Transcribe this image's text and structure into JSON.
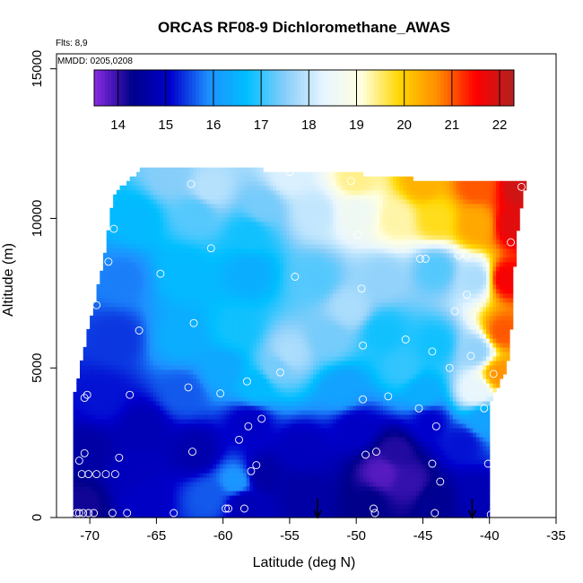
{
  "chart_data": {
    "type": "heatmap",
    "title": "ORCAS RF08-9 Dichloromethane_AWAS",
    "annotations": [
      "Flts: 8,9",
      "MMDD: 0205,0208"
    ],
    "xlabel": "Latitude (deg N)",
    "ylabel": "Altitude (m)",
    "xlim": [
      -72.5,
      -35
    ],
    "ylim": [
      0,
      15500
    ],
    "xticks": [
      -70,
      -65,
      -60,
      -55,
      -50,
      -45,
      -40,
      -35
    ],
    "xtick_labels": [
      "-70",
      "-65",
      "-60",
      "-55",
      "-50",
      "-45",
      "-40",
      "-35"
    ],
    "yticks": [
      0,
      5000,
      10000,
      15000
    ],
    "ytick_labels": [
      "0",
      "5000",
      "10000",
      "15000"
    ],
    "colorbar": {
      "min": 13.5,
      "max": 22.3,
      "ticks": [
        14,
        15,
        16,
        17,
        18,
        19,
        20,
        21,
        22
      ],
      "tick_labels": [
        "14",
        "15",
        "16",
        "17",
        "18",
        "19",
        "20",
        "21",
        "22"
      ],
      "colors": [
        "#8a2be2",
        "#00008b",
        "#0000cd",
        "#1e90ff",
        "#00bfff",
        "#87cefa",
        "#e6f5ff",
        "#ffffe0",
        "#ffd700",
        "#ff8c00",
        "#ff0000",
        "#b22222"
      ]
    },
    "region": [
      [
        -71.3,
        0
      ],
      [
        -71.3,
        3800
      ],
      [
        -70.0,
        6500
      ],
      [
        -69.0,
        8500
      ],
      [
        -68.2,
        10800
      ],
      [
        -66.0,
        11700
      ],
      [
        -62.5,
        11700
      ],
      [
        -55.0,
        11600
      ],
      [
        -50.0,
        11500
      ],
      [
        -45.0,
        11300
      ],
      [
        -41.0,
        11300
      ],
      [
        -37.3,
        11200
      ],
      [
        -37.8,
        10000
      ],
      [
        -38.2,
        8000
      ],
      [
        -38.4,
        6000
      ],
      [
        -38.7,
        5000
      ],
      [
        -39.5,
        4300
      ],
      [
        -40.0,
        3800
      ],
      [
        -40.0,
        0
      ]
    ],
    "field_points": [
      {
        "x": -70.5,
        "y": 500,
        "v": 14.2
      },
      {
        "x": -66.0,
        "y": 600,
        "v": 15.0
      },
      {
        "x": -61.0,
        "y": 700,
        "v": 15.6
      },
      {
        "x": -58.5,
        "y": 500,
        "v": 14.8
      },
      {
        "x": -54.0,
        "y": 800,
        "v": 14.6
      },
      {
        "x": -49.0,
        "y": 500,
        "v": 14.3
      },
      {
        "x": -44.0,
        "y": 600,
        "v": 14.4
      },
      {
        "x": -41.0,
        "y": 800,
        "v": 14.8
      },
      {
        "x": -70.0,
        "y": 2200,
        "v": 14.6
      },
      {
        "x": -62.0,
        "y": 2200,
        "v": 14.7
      },
      {
        "x": -54.0,
        "y": 2300,
        "v": 14.9
      },
      {
        "x": -47.0,
        "y": 2200,
        "v": 14.1
      },
      {
        "x": -42.0,
        "y": 2500,
        "v": 15.2
      },
      {
        "x": -69.0,
        "y": 4000,
        "v": 15.2
      },
      {
        "x": -63.0,
        "y": 4200,
        "v": 15.6
      },
      {
        "x": -57.5,
        "y": 4400,
        "v": 16.6
      },
      {
        "x": -51.0,
        "y": 4300,
        "v": 16.2
      },
      {
        "x": -45.0,
        "y": 4200,
        "v": 16.4
      },
      {
        "x": -41.0,
        "y": 4200,
        "v": 18.4
      },
      {
        "x": -39.2,
        "y": 4800,
        "v": 20.6
      },
      {
        "x": -68.0,
        "y": 6000,
        "v": 15.4
      },
      {
        "x": -63.0,
        "y": 6000,
        "v": 16.4
      },
      {
        "x": -59.0,
        "y": 6300,
        "v": 16.8
      },
      {
        "x": -55.0,
        "y": 5500,
        "v": 17.8
      },
      {
        "x": -52.0,
        "y": 6000,
        "v": 17.4
      },
      {
        "x": -48.0,
        "y": 6200,
        "v": 16.8
      },
      {
        "x": -44.0,
        "y": 5800,
        "v": 16.8
      },
      {
        "x": -41.0,
        "y": 5600,
        "v": 17.6
      },
      {
        "x": -39.0,
        "y": 6200,
        "v": 21.0
      },
      {
        "x": -67.5,
        "y": 8000,
        "v": 15.8
      },
      {
        "x": -63.0,
        "y": 8200,
        "v": 16.6
      },
      {
        "x": -58.0,
        "y": 8200,
        "v": 16.4
      },
      {
        "x": -53.0,
        "y": 8000,
        "v": 17.2
      },
      {
        "x": -48.0,
        "y": 8000,
        "v": 17.6
      },
      {
        "x": -44.0,
        "y": 8300,
        "v": 17.2
      },
      {
        "x": -41.0,
        "y": 8000,
        "v": 17.8
      },
      {
        "x": -38.8,
        "y": 8000,
        "v": 21.6
      },
      {
        "x": -66.5,
        "y": 10000,
        "v": 16.6
      },
      {
        "x": -62.0,
        "y": 10200,
        "v": 17.2
      },
      {
        "x": -57.0,
        "y": 10400,
        "v": 17.4
      },
      {
        "x": -53.0,
        "y": 10200,
        "v": 18.0
      },
      {
        "x": -50.0,
        "y": 10200,
        "v": 18.6
      },
      {
        "x": -47.0,
        "y": 10000,
        "v": 19.3
      },
      {
        "x": -44.0,
        "y": 10000,
        "v": 19.8
      },
      {
        "x": -41.0,
        "y": 9800,
        "v": 20.4
      },
      {
        "x": -38.2,
        "y": 9800,
        "v": 21.8
      },
      {
        "x": -64.0,
        "y": 11400,
        "v": 17.5
      },
      {
        "x": -55.0,
        "y": 11400,
        "v": 18.2
      },
      {
        "x": -50.0,
        "y": 11300,
        "v": 19.4
      },
      {
        "x": -45.0,
        "y": 11200,
        "v": 20.3
      },
      {
        "x": -41.0,
        "y": 11100,
        "v": 21.0
      },
      {
        "x": -37.6,
        "y": 11000,
        "v": 22.0
      },
      {
        "x": -61.0,
        "y": 11000,
        "v": 17.9
      },
      {
        "x": -58.0,
        "y": 9500,
        "v": 16.8
      },
      {
        "x": -50.5,
        "y": 7000,
        "v": 17.8
      },
      {
        "x": -46.5,
        "y": 5000,
        "v": 17.0
      },
      {
        "x": -56.0,
        "y": 5000,
        "v": 17.4
      },
      {
        "x": -60.0,
        "y": 5000,
        "v": 16.3
      },
      {
        "x": -66.0,
        "y": 3000,
        "v": 14.8
      },
      {
        "x": -58.0,
        "y": 3200,
        "v": 15.0
      },
      {
        "x": -50.0,
        "y": 3000,
        "v": 15.0
      },
      {
        "x": -44.5,
        "y": 3200,
        "v": 15.1
      },
      {
        "x": -40.5,
        "y": 3300,
        "v": 16.2
      },
      {
        "x": -59.0,
        "y": 1200,
        "v": 16.0
      },
      {
        "x": -57.0,
        "y": 1400,
        "v": 14.6
      },
      {
        "x": -48.0,
        "y": 1500,
        "v": 13.8
      },
      {
        "x": -46.0,
        "y": 1200,
        "v": 14.0
      },
      {
        "x": -67.0,
        "y": 1500,
        "v": 14.9
      }
    ],
    "samples": [
      [
        -71.0,
        150
      ],
      [
        -70.8,
        150
      ],
      [
        -70.5,
        150
      ],
      [
        -70.1,
        150
      ],
      [
        -69.7,
        150
      ],
      [
        -68.3,
        150
      ],
      [
        -67.2,
        150
      ],
      [
        -63.7,
        150
      ],
      [
        -59.8,
        300
      ],
      [
        -59.6,
        300
      ],
      [
        -58.4,
        300
      ],
      [
        -48.7,
        300
      ],
      [
        -48.6,
        150
      ],
      [
        -44.1,
        150
      ],
      [
        -39.9,
        100
      ],
      [
        -70.6,
        1450
      ],
      [
        -70.1,
        1450
      ],
      [
        -69.5,
        1450
      ],
      [
        -68.8,
        1450
      ],
      [
        -68.1,
        1450
      ],
      [
        -70.8,
        1900
      ],
      [
        -70.4,
        2150
      ],
      [
        -67.8,
        2000
      ],
      [
        -62.3,
        2200
      ],
      [
        -57.9,
        1550
      ],
      [
        -57.5,
        1750
      ],
      [
        -49.3,
        2100
      ],
      [
        -48.5,
        2200
      ],
      [
        -44.3,
        1800
      ],
      [
        -43.7,
        1200
      ],
      [
        -40.1,
        1800
      ],
      [
        -58.8,
        2600
      ],
      [
        -58.1,
        3050
      ],
      [
        -57.1,
        3300
      ],
      [
        -44.0,
        3050
      ],
      [
        -40.4,
        3650
      ],
      [
        -45.3,
        3650
      ],
      [
        -49.5,
        3950
      ],
      [
        -47.6,
        4050
      ],
      [
        -67.0,
        4100
      ],
      [
        -62.6,
        4350
      ],
      [
        -60.2,
        4150
      ],
      [
        -70.2,
        4100
      ],
      [
        -70.4,
        4000
      ],
      [
        -58.2,
        4550
      ],
      [
        -55.7,
        4850
      ],
      [
        -43.0,
        5000
      ],
      [
        -41.4,
        5400
      ],
      [
        -44.3,
        5550
      ],
      [
        -49.5,
        5750
      ],
      [
        -46.3,
        5950
      ],
      [
        -39.7,
        4800
      ],
      [
        -66.3,
        6250
      ],
      [
        -62.2,
        6500
      ],
      [
        -42.6,
        6900
      ],
      [
        -69.5,
        7100
      ],
      [
        -41.7,
        7450
      ],
      [
        -49.6,
        7650
      ],
      [
        -54.6,
        8050
      ],
      [
        -64.7,
        8150
      ],
      [
        -68.6,
        8550
      ],
      [
        -45.2,
        8650
      ],
      [
        -44.8,
        8650
      ],
      [
        -42.3,
        8750
      ],
      [
        -41.7,
        8750
      ],
      [
        -60.9,
        9000
      ],
      [
        -68.2,
        9650
      ],
      [
        -49.9,
        9450
      ],
      [
        -38.4,
        9200
      ],
      [
        -62.4,
        11150
      ],
      [
        -55.0,
        11550
      ],
      [
        -50.4,
        11250
      ],
      [
        -37.6,
        11050
      ]
    ],
    "arrows": [
      -52.9,
      -41.3
    ]
  }
}
